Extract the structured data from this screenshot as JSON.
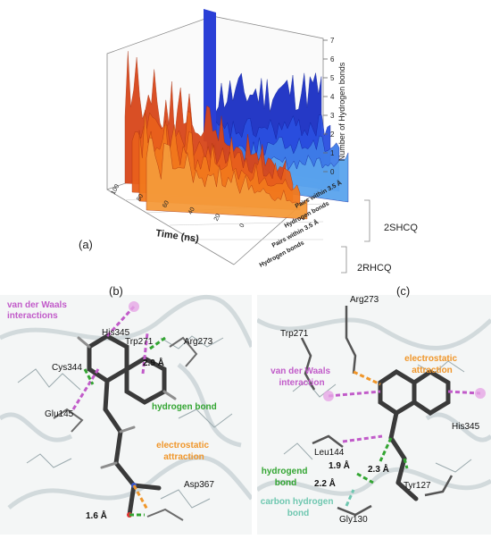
{
  "panel_a": {
    "label": "(a)",
    "chart_data": {
      "type": "3d-area",
      "xlabel": "Time (ns)",
      "zlabel": "Number of Hydrogen bonds",
      "z_ticks": [
        "0",
        "1",
        "2",
        "3",
        "4",
        "5",
        "6",
        "7"
      ],
      "x_ticks": [
        "100",
        "80",
        "60",
        "40",
        "20",
        "0"
      ],
      "depth_categories": [
        "Pairs within 3.5 Å",
        "Hydrogen bonds",
        "Pairs within 3.5 Å",
        "Hydrogen bonds"
      ],
      "groups": [
        "2SHCQ",
        "2RHCQ"
      ],
      "zlim": [
        0,
        7
      ],
      "xlim": [
        0,
        100
      ],
      "colors": {
        "2SHCQ": "#2a3fd6",
        "2RHCQ": "#e0541c"
      }
    }
  },
  "panel_b": {
    "label": "(b)",
    "residues": [
      "His345",
      "Trp271",
      "Arg273",
      "Cys344",
      "Glu145",
      "Asp367"
    ],
    "distances": [
      "2.9 Å",
      "1.6 Å"
    ],
    "annotations": {
      "vdw": "van der Waals\ninteractions",
      "hbond": "hydrogen bond",
      "elec": "electrostatic\nattraction"
    }
  },
  "panel_c": {
    "label": "(c)",
    "residues": [
      "Arg273",
      "Trp271",
      "His345",
      "Leu144",
      "Tyr127",
      "Gly130"
    ],
    "distances": [
      "1.9 Å",
      "2.3 Å",
      "2.2 Å"
    ],
    "annotations": {
      "vdw": "van der Waals\ninteraction",
      "elec": "electrostatic\nattraction",
      "hbond": "hydrogend\nbond",
      "chbond": "carbon hydrogen\nbond"
    }
  },
  "colors": {
    "vdw": "#c15bc9",
    "hbond": "#33a532",
    "elec": "#f0962a",
    "chbond": "#6fc7b0"
  }
}
